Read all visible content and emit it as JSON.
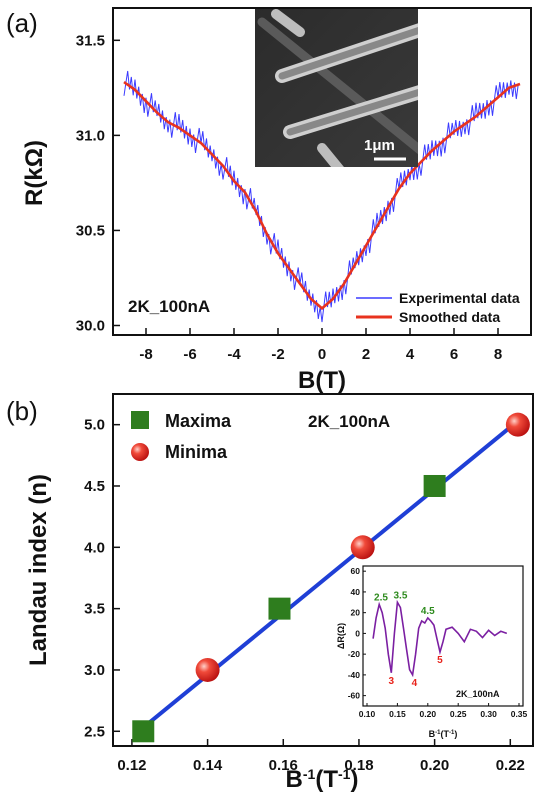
{
  "chart_data": [
    {
      "panel": "(a)",
      "type": "line",
      "xlabel": "B(T)",
      "ylabel": "R(kΩ)",
      "xlim": [
        -9.5,
        9.5
      ],
      "ylim": [
        29.95,
        31.67
      ],
      "xticks": [
        -8,
        -6,
        -4,
        -2,
        0,
        2,
        4,
        6,
        8
      ],
      "yticks": [
        30.0,
        30.5,
        31.0,
        31.5
      ],
      "annotation": "2K_100nA",
      "legend_position": "bottom-right",
      "series": [
        {
          "name": "Experimental data",
          "color": "#3b3bff",
          "x": [
            -9,
            -8.5,
            -8,
            -7.5,
            -7,
            -6.5,
            -6,
            -5.5,
            -5,
            -4.5,
            -4,
            -3.5,
            -3,
            -2.5,
            -2,
            -1.5,
            -1,
            -0.5,
            0,
            0.5,
            1,
            1.5,
            2,
            2.5,
            3,
            3.5,
            4,
            4.5,
            5,
            5.5,
            6,
            6.5,
            7,
            7.5,
            8,
            8.5,
            9
          ],
          "y": [
            31.28,
            31.24,
            31.18,
            31.12,
            31.07,
            31.04,
            31.0,
            30.96,
            30.9,
            30.84,
            30.76,
            30.7,
            30.6,
            30.48,
            30.38,
            30.3,
            30.22,
            30.14,
            30.09,
            30.14,
            30.22,
            30.32,
            30.42,
            30.52,
            30.62,
            30.72,
            30.8,
            30.86,
            30.92,
            30.97,
            31.02,
            31.06,
            31.1,
            31.15,
            31.2,
            31.25,
            31.27
          ]
        },
        {
          "name": "Smoothed data",
          "color": "#e8321e",
          "x": [
            -9,
            -8.5,
            -8,
            -7.5,
            -7,
            -6.5,
            -6,
            -5.5,
            -5,
            -4.5,
            -4,
            -3.5,
            -3,
            -2.5,
            -2,
            -1.5,
            -1,
            -0.5,
            0,
            0.5,
            1,
            1.5,
            2,
            2.5,
            3,
            3.5,
            4,
            4.5,
            5,
            5.5,
            6,
            6.5,
            7,
            7.5,
            8,
            8.5,
            9
          ],
          "y": [
            31.28,
            31.24,
            31.18,
            31.12,
            31.07,
            31.04,
            31.0,
            30.96,
            30.9,
            30.84,
            30.76,
            30.7,
            30.6,
            30.48,
            30.38,
            30.3,
            30.22,
            30.14,
            30.09,
            30.14,
            30.22,
            30.32,
            30.42,
            30.52,
            30.62,
            30.72,
            30.8,
            30.86,
            30.92,
            30.97,
            31.02,
            31.06,
            31.1,
            31.15,
            31.2,
            31.25,
            31.27
          ]
        }
      ],
      "inset": {
        "type": "image",
        "scale_bar_label": "1μm"
      }
    },
    {
      "panel": "(b)",
      "type": "scatter",
      "xlabel": "B-1(T-1)",
      "ylabel": "Landau index (n)",
      "xlim": [
        0.115,
        0.226
      ],
      "ylim": [
        2.38,
        5.25
      ],
      "xticks": [
        0.12,
        0.14,
        0.16,
        0.18,
        0.2,
        0.22
      ],
      "xtick_labels": [
        "0.12",
        "0.14",
        "0.16",
        "0.18",
        "0.20",
        "0.22"
      ],
      "yticks": [
        2.5,
        3.0,
        3.5,
        4.0,
        4.5,
        5.0
      ],
      "ytick_labels": [
        "2.5",
        "3.0",
        "3.5",
        "4.0",
        "4.5",
        "5.0"
      ],
      "annotation": "2K_100nA",
      "legend_position": "top-left",
      "series": [
        {
          "name": "Maxima",
          "marker": "square",
          "color": "#2e7d1e",
          "x": [
            0.123,
            0.159,
            0.2
          ],
          "y": [
            2.5,
            3.5,
            4.5
          ]
        },
        {
          "name": "Minima",
          "marker": "sphere",
          "color": "#e8231b",
          "x": [
            0.14,
            0.181,
            0.222
          ],
          "y": [
            3.0,
            4.0,
            5.0
          ]
        }
      ],
      "fit_line": {
        "color": "#1f3fd6",
        "x": [
          0.123,
          0.222
        ],
        "y": [
          2.53,
          5.03
        ]
      },
      "inset": {
        "type": "line",
        "ylabel": "ΔR(Ω)",
        "xlabel": "B-1(T-1)",
        "annotation": "2K_100nA",
        "xlim": [
          0.1,
          0.35
        ],
        "ylim": [
          -70,
          65
        ],
        "xticks": [
          0.1,
          0.15,
          0.2,
          0.25,
          0.3,
          0.35
        ],
        "xtick_labels": [
          "0.10",
          "0.15",
          "0.20",
          "0.25",
          "0.30",
          "0.35"
        ],
        "yticks": [
          -60,
          -40,
          -20,
          0,
          20,
          40,
          60
        ],
        "ytick_labels": [
          "-60",
          "-40",
          "-20",
          "0",
          "20",
          "40",
          "60"
        ],
        "series_color": "#7b1fa2",
        "x": [
          0.11,
          0.115,
          0.12,
          0.125,
          0.13,
          0.135,
          0.14,
          0.145,
          0.15,
          0.155,
          0.16,
          0.165,
          0.17,
          0.175,
          0.18,
          0.185,
          0.19,
          0.195,
          0.2,
          0.205,
          0.21,
          0.215,
          0.22,
          0.225,
          0.23,
          0.24,
          0.25,
          0.26,
          0.27,
          0.28,
          0.29,
          0.3,
          0.31,
          0.32,
          0.33
        ],
        "y": [
          -5,
          15,
          28,
          20,
          5,
          -20,
          -38,
          0,
          30,
          25,
          5,
          -15,
          -35,
          -40,
          -20,
          5,
          12,
          10,
          15,
          12,
          8,
          -5,
          -18,
          -8,
          4,
          6,
          0,
          -8,
          4,
          2,
          -4,
          3,
          -2,
          2,
          0
        ],
        "maxima_labels": [
          {
            "text": "2.5",
            "x": 0.123,
            "y": 28
          },
          {
            "text": "3.5",
            "x": 0.155,
            "y": 30
          },
          {
            "text": "4.5",
            "x": 0.2,
            "y": 15
          }
        ],
        "minima_labels": [
          {
            "text": "3",
            "x": 0.14,
            "y": -38
          },
          {
            "text": "4",
            "x": 0.178,
            "y": -40
          },
          {
            "text": "5",
            "x": 0.22,
            "y": -18
          }
        ]
      }
    }
  ]
}
